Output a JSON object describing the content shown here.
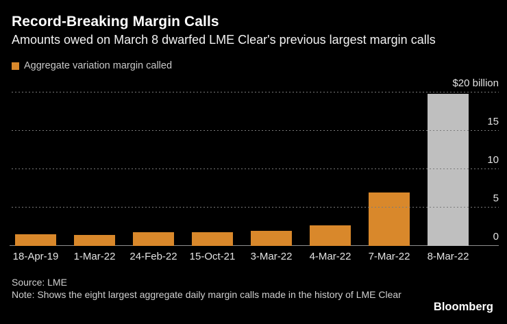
{
  "header": {
    "title": "Record-Breaking Margin Calls",
    "subtitle": "Amounts owed on March 8 dwarfed LME Clear's previous largest margin calls"
  },
  "legend": {
    "label": "Aggregate variation margin called",
    "swatch_color": "#d9882b"
  },
  "chart_data": {
    "type": "bar",
    "title": "Record-Breaking Margin Calls",
    "subtitle": "Amounts owed on March 8 dwarfed LME Clear's previous largest margin calls",
    "series_name": "Aggregate variation margin called",
    "categories": [
      "18-Apr-19",
      "1-Mar-22",
      "24-Feb-22",
      "15-Oct-21",
      "3-Mar-22",
      "4-Mar-22",
      "7-Mar-22",
      "8-Mar-22"
    ],
    "values": [
      1.5,
      1.4,
      1.8,
      1.8,
      2.0,
      2.7,
      7.0,
      19.8
    ],
    "unit": "$ billion",
    "ylim": [
      0,
      20
    ],
    "yticks": [
      {
        "value": 20,
        "label": "$20 billion"
      },
      {
        "value": 15,
        "label": "15"
      },
      {
        "value": 10,
        "label": "10"
      },
      {
        "value": 5,
        "label": "5"
      },
      {
        "value": 0,
        "label": "0"
      }
    ],
    "bar_colors": [
      "#d9882b",
      "#d9882b",
      "#d9882b",
      "#d9882b",
      "#d9882b",
      "#d9882b",
      "#d9882b",
      "#bfbfbf"
    ],
    "highlight_category": "8-Mar-22",
    "grid": "dotted-horizontal",
    "legend_position": "top-left",
    "axis_side": "right"
  },
  "footer": {
    "source": "Source: LME",
    "note": "Note: Shows the eight largest aggregate daily margin calls made in the history of LME Clear",
    "brand": "Bloomberg"
  },
  "colors": {
    "background": "#000000",
    "bar_orange": "#d9882b",
    "bar_gray": "#bfbfbf",
    "gridline": "#7b7b7b",
    "axis_line": "#8f8f8f",
    "title_text": "#ffffff",
    "tick_text": "#e3e3e3",
    "footer_text": "#d0d0d0"
  }
}
